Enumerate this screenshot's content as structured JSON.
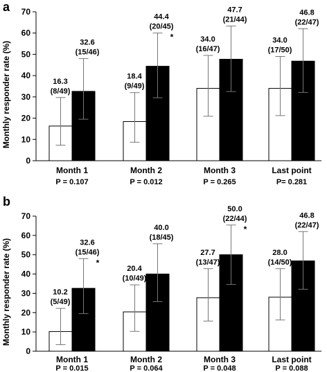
{
  "chart_data": [
    {
      "type": "bar",
      "panel": "a",
      "ylabel": "Monthly responder rate (%)",
      "ylim": [
        0,
        70
      ],
      "yticks": [
        0,
        10,
        20,
        30,
        40,
        50,
        60,
        70
      ],
      "categories": [
        "Month 1",
        "Month 2",
        "Month 3",
        "Last point"
      ],
      "p_values": [
        "P = 0.107",
        "P = 0.012",
        "P = 0.265",
        "P= 0.281"
      ],
      "series": [
        {
          "fill": "#ffffff",
          "values": [
            16.3,
            18.4,
            34.0,
            34.0
          ],
          "labels": [
            "16.3",
            "18.4",
            "34.0",
            "34.0"
          ],
          "counts": [
            "(8/49)",
            "(9/49)",
            "(16/47)",
            "(17/50)"
          ],
          "error_low": [
            7.3,
            8.7,
            20.9,
            21.2
          ],
          "error_high": [
            29.7,
            32.0,
            49.5,
            49.0
          ],
          "stars": [
            "",
            "",
            "",
            ""
          ]
        },
        {
          "fill": "#000000",
          "values": [
            32.6,
            44.4,
            47.7,
            46.8
          ],
          "labels": [
            "32.6",
            "44.4",
            "47.7",
            "46.8"
          ],
          "counts": [
            "(15/46)",
            "(20/45)",
            "(21/44)",
            "(22/47)"
          ],
          "error_low": [
            19.5,
            29.6,
            32.5,
            32.1
          ],
          "error_high": [
            48.0,
            60.0,
            63.3,
            62.0
          ],
          "stars": [
            "",
            "*",
            "",
            ""
          ]
        }
      ]
    },
    {
      "type": "bar",
      "panel": "b",
      "ylabel": "Monthly responder rate (%)",
      "ylim": [
        0,
        70
      ],
      "yticks": [
        0,
        10,
        20,
        30,
        40,
        50,
        60,
        70
      ],
      "categories": [
        "Month 1",
        "Month 2",
        "Month 3",
        "Last point"
      ],
      "p_values": [
        "P = 0.015",
        "P = 0.064",
        "P = 0.048",
        "P = 0.088"
      ],
      "series": [
        {
          "fill": "#ffffff",
          "values": [
            10.2,
            20.4,
            27.7,
            28.0
          ],
          "labels": [
            "10.2",
            "20.4",
            "27.7",
            "28.0"
          ],
          "counts": [
            "(5/49)",
            "(10/49)",
            "(13/47)",
            "(14/50)"
          ],
          "error_low": [
            3.4,
            10.3,
            15.6,
            16.2
          ],
          "error_high": [
            22.2,
            34.4,
            42.8,
            42.8
          ],
          "stars": [
            "",
            "",
            "",
            ""
          ]
        },
        {
          "fill": "#000000",
          "values": [
            32.6,
            40.0,
            50.0,
            46.8
          ],
          "labels": [
            "32.6",
            "40.0",
            "50.0",
            "46.8"
          ],
          "counts": [
            "(15/46)",
            "(18/45)",
            "(22/44)",
            "(22/47)"
          ],
          "error_low": [
            19.5,
            25.7,
            34.6,
            32.1
          ],
          "error_high": [
            48.0,
            55.7,
            65.4,
            62.0
          ],
          "stars": [
            "*",
            "",
            "*",
            ""
          ]
        }
      ]
    }
  ]
}
